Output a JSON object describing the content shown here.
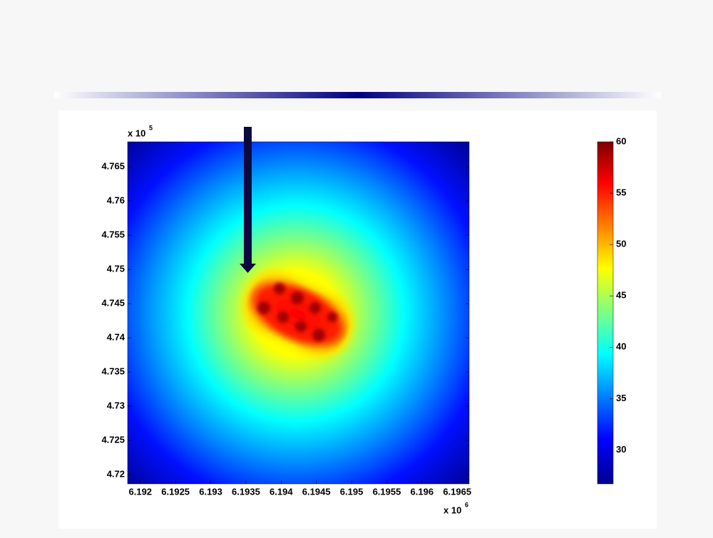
{
  "chart_data": {
    "type": "heatmap",
    "colormap": "jet",
    "xlim": [
      6.19182,
      6.19667
    ],
    "xticks": [
      6.192,
      6.1925,
      6.193,
      6.1935,
      6.194,
      6.1945,
      6.195,
      6.1955,
      6.196,
      6.1965
    ],
    "x_multiplier": {
      "base": "x 10",
      "exponent": "6"
    },
    "ylim": [
      4.71865,
      4.76865
    ],
    "yticks": [
      4.72,
      4.725,
      4.73,
      4.735,
      4.74,
      4.745,
      4.75,
      4.755,
      4.76,
      4.765
    ],
    "y_multiplier": {
      "base": "x 10",
      "exponent": "5"
    },
    "colorbar": {
      "lim": [
        26.7,
        60
      ],
      "ticks": [
        30,
        35,
        40,
        45,
        50,
        55,
        60
      ]
    }
  }
}
